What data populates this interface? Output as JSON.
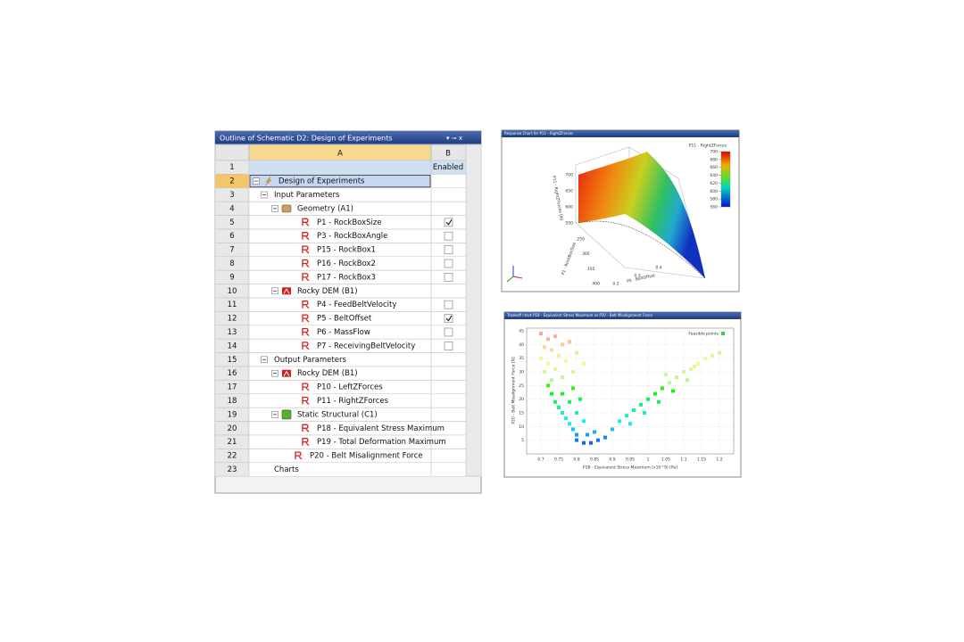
{
  "outline": {
    "title": "Outline of Schematic D2: Design of Experiments",
    "columns": [
      "A",
      "B"
    ],
    "rows": [
      {
        "num": 1,
        "b": "Enabled"
      },
      {
        "num": 2,
        "label": "Design of Experiments"
      },
      {
        "num": 3,
        "label": "Input Parameters"
      },
      {
        "num": 4,
        "label": "Geometry (A1)"
      },
      {
        "num": 5,
        "label": "P1 - RockBoxSize",
        "checked": true
      },
      {
        "num": 6,
        "label": "P3 - RockBoxAngle",
        "checked": false
      },
      {
        "num": 7,
        "label": "P15 - RockBox1",
        "checked": false
      },
      {
        "num": 8,
        "label": "P16 - RockBox2",
        "checked": false
      },
      {
        "num": 9,
        "label": "P17 - RockBox3",
        "checked": false
      },
      {
        "num": 10,
        "label": "Rocky DEM (B1)"
      },
      {
        "num": 11,
        "label": "P4 - FeedBeltVelocity",
        "checked": false
      },
      {
        "num": 12,
        "label": "P5 - BeltOffset",
        "checked": true
      },
      {
        "num": 13,
        "label": "P6 - MassFlow",
        "checked": false
      },
      {
        "num": 14,
        "label": "P7 - ReceivingBeltVelocity",
        "checked": false
      },
      {
        "num": 15,
        "label": "Output Parameters"
      },
      {
        "num": 16,
        "label": "Rocky DEM (B1)"
      },
      {
        "num": 17,
        "label": "P10 - LeftZForces"
      },
      {
        "num": 18,
        "label": "P11 - RightZForces"
      },
      {
        "num": 19,
        "label": "Static Structural (C1)"
      },
      {
        "num": 20,
        "label": "P18 - Equivalent Stress Maximum"
      },
      {
        "num": 21,
        "label": "P19 - Total Deformation Maximum"
      },
      {
        "num": 22,
        "label": "P20 - Belt Misalignment Force"
      },
      {
        "num": 23,
        "label": "Charts"
      }
    ]
  },
  "chart_data": [
    {
      "type": "surface",
      "title": "Response Chart for P11 - RightZForces",
      "legend_title": "P11 - RightZForces",
      "zlabel": "P11 - RightZForces [N]",
      "xlabel": "P1 - RockBoxSize",
      "ylabel": "P5 - BeltOffset",
      "clim": [
        560,
        700
      ],
      "cticks": [
        700,
        680,
        660,
        640,
        620,
        600,
        580,
        560
      ],
      "zticks": [
        700,
        650,
        600,
        550
      ],
      "xticks": [
        250,
        300,
        350,
        400
      ],
      "yticks": [
        0.2,
        0.3,
        0.4
      ]
    },
    {
      "type": "scatter",
      "title": "Tradeoff chart P18 - Equivalent Stress Maximum vs P20 - Belt Misalignment Force",
      "xlabel": "P18 - Equivalent Stress Maximum (x10^9) [Pa]",
      "ylabel": "P20 - Belt Misalignment Force [N]",
      "xlim": [
        0.66,
        1.24
      ],
      "ylim": [
        0,
        46
      ],
      "xticks": [
        0.7,
        0.75,
        0.8,
        0.85,
        0.9,
        0.95,
        1,
        1.05,
        1.1,
        1.15,
        1.2
      ],
      "yticks": [
        5,
        10,
        15,
        20,
        25,
        30,
        35,
        40,
        45
      ],
      "grid": true,
      "series": [
        {
          "name": "Feasible points",
          "color": "#44cc44",
          "x": [
            0.7,
            0.72,
            0.74,
            0.71,
            0.73,
            0.76,
            0.78,
            0.75,
            0.7,
            0.72,
            0.77,
            0.8,
            0.74,
            0.79,
            0.71,
            0.82,
            0.76,
            0.73,
            0.72,
            0.73,
            0.74,
            0.75,
            0.76,
            0.77,
            0.78,
            0.79,
            0.8,
            0.76,
            0.78,
            0.8,
            0.82,
            0.79,
            0.81,
            0.8,
            0.82,
            0.84,
            0.86,
            0.83,
            0.85,
            0.88,
            0.9,
            0.92,
            0.94,
            0.96,
            0.98,
            1.0,
            1.02,
            1.04,
            1.06,
            1.08,
            1.1,
            1.12,
            1.14,
            1.16,
            1.18,
            1.2,
            0.95,
            0.99,
            1.03,
            1.07,
            1.11,
            1.05,
            1.13
          ],
          "values": [
            44,
            42,
            43,
            39,
            38,
            40,
            41,
            36,
            35,
            33,
            34,
            37,
            31,
            30,
            30,
            33,
            28,
            27,
            25,
            22,
            19,
            17,
            15,
            13,
            11,
            9,
            7,
            22,
            19,
            15,
            12,
            24,
            20,
            5,
            4,
            4,
            5,
            7,
            8,
            6,
            9,
            12,
            14,
            16,
            18,
            20,
            22,
            24,
            26,
            28,
            30,
            31,
            33,
            35,
            36,
            37,
            11,
            15,
            19,
            23,
            27,
            29,
            32
          ]
        }
      ]
    }
  ]
}
